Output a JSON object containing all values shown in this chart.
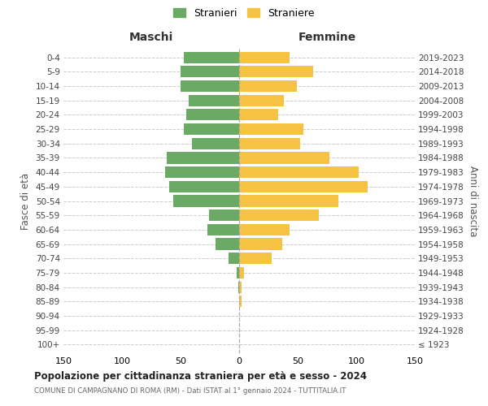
{
  "age_groups": [
    "100+",
    "95-99",
    "90-94",
    "85-89",
    "80-84",
    "75-79",
    "70-74",
    "65-69",
    "60-64",
    "55-59",
    "50-54",
    "45-49",
    "40-44",
    "35-39",
    "30-34",
    "25-29",
    "20-24",
    "15-19",
    "10-14",
    "5-9",
    "0-4"
  ],
  "birth_years": [
    "≤ 1923",
    "1924-1928",
    "1929-1933",
    "1934-1938",
    "1939-1943",
    "1944-1948",
    "1949-1953",
    "1954-1958",
    "1959-1963",
    "1964-1968",
    "1969-1973",
    "1974-1978",
    "1979-1983",
    "1984-1988",
    "1989-1993",
    "1994-1998",
    "1999-2003",
    "2004-2008",
    "2009-2013",
    "2014-2018",
    "2019-2023"
  ],
  "maschi": [
    0,
    0,
    0,
    0,
    1,
    2,
    9,
    20,
    27,
    26,
    56,
    60,
    63,
    62,
    40,
    47,
    45,
    43,
    50,
    50,
    47
  ],
  "femmine": [
    0,
    0,
    0,
    2,
    2,
    4,
    28,
    37,
    43,
    68,
    85,
    110,
    102,
    77,
    52,
    55,
    33,
    38,
    49,
    63,
    43
  ],
  "male_color": "#6aaa64",
  "female_color": "#f5c242",
  "background_color": "#ffffff",
  "grid_color": "#cccccc",
  "title": "Popolazione per cittadinanza straniera per età e sesso - 2024",
  "subtitle": "COMUNE DI CAMPAGNANO DI ROMA (RM) - Dati ISTAT al 1° gennaio 2024 - TUTTITALIA.IT",
  "xlabel_left": "Maschi",
  "xlabel_right": "Femmine",
  "ylabel_left": "Fasce di età",
  "ylabel_right": "Anni di nascita",
  "legend_stranieri": "Stranieri",
  "legend_straniere": "Straniere",
  "xlim": 150
}
